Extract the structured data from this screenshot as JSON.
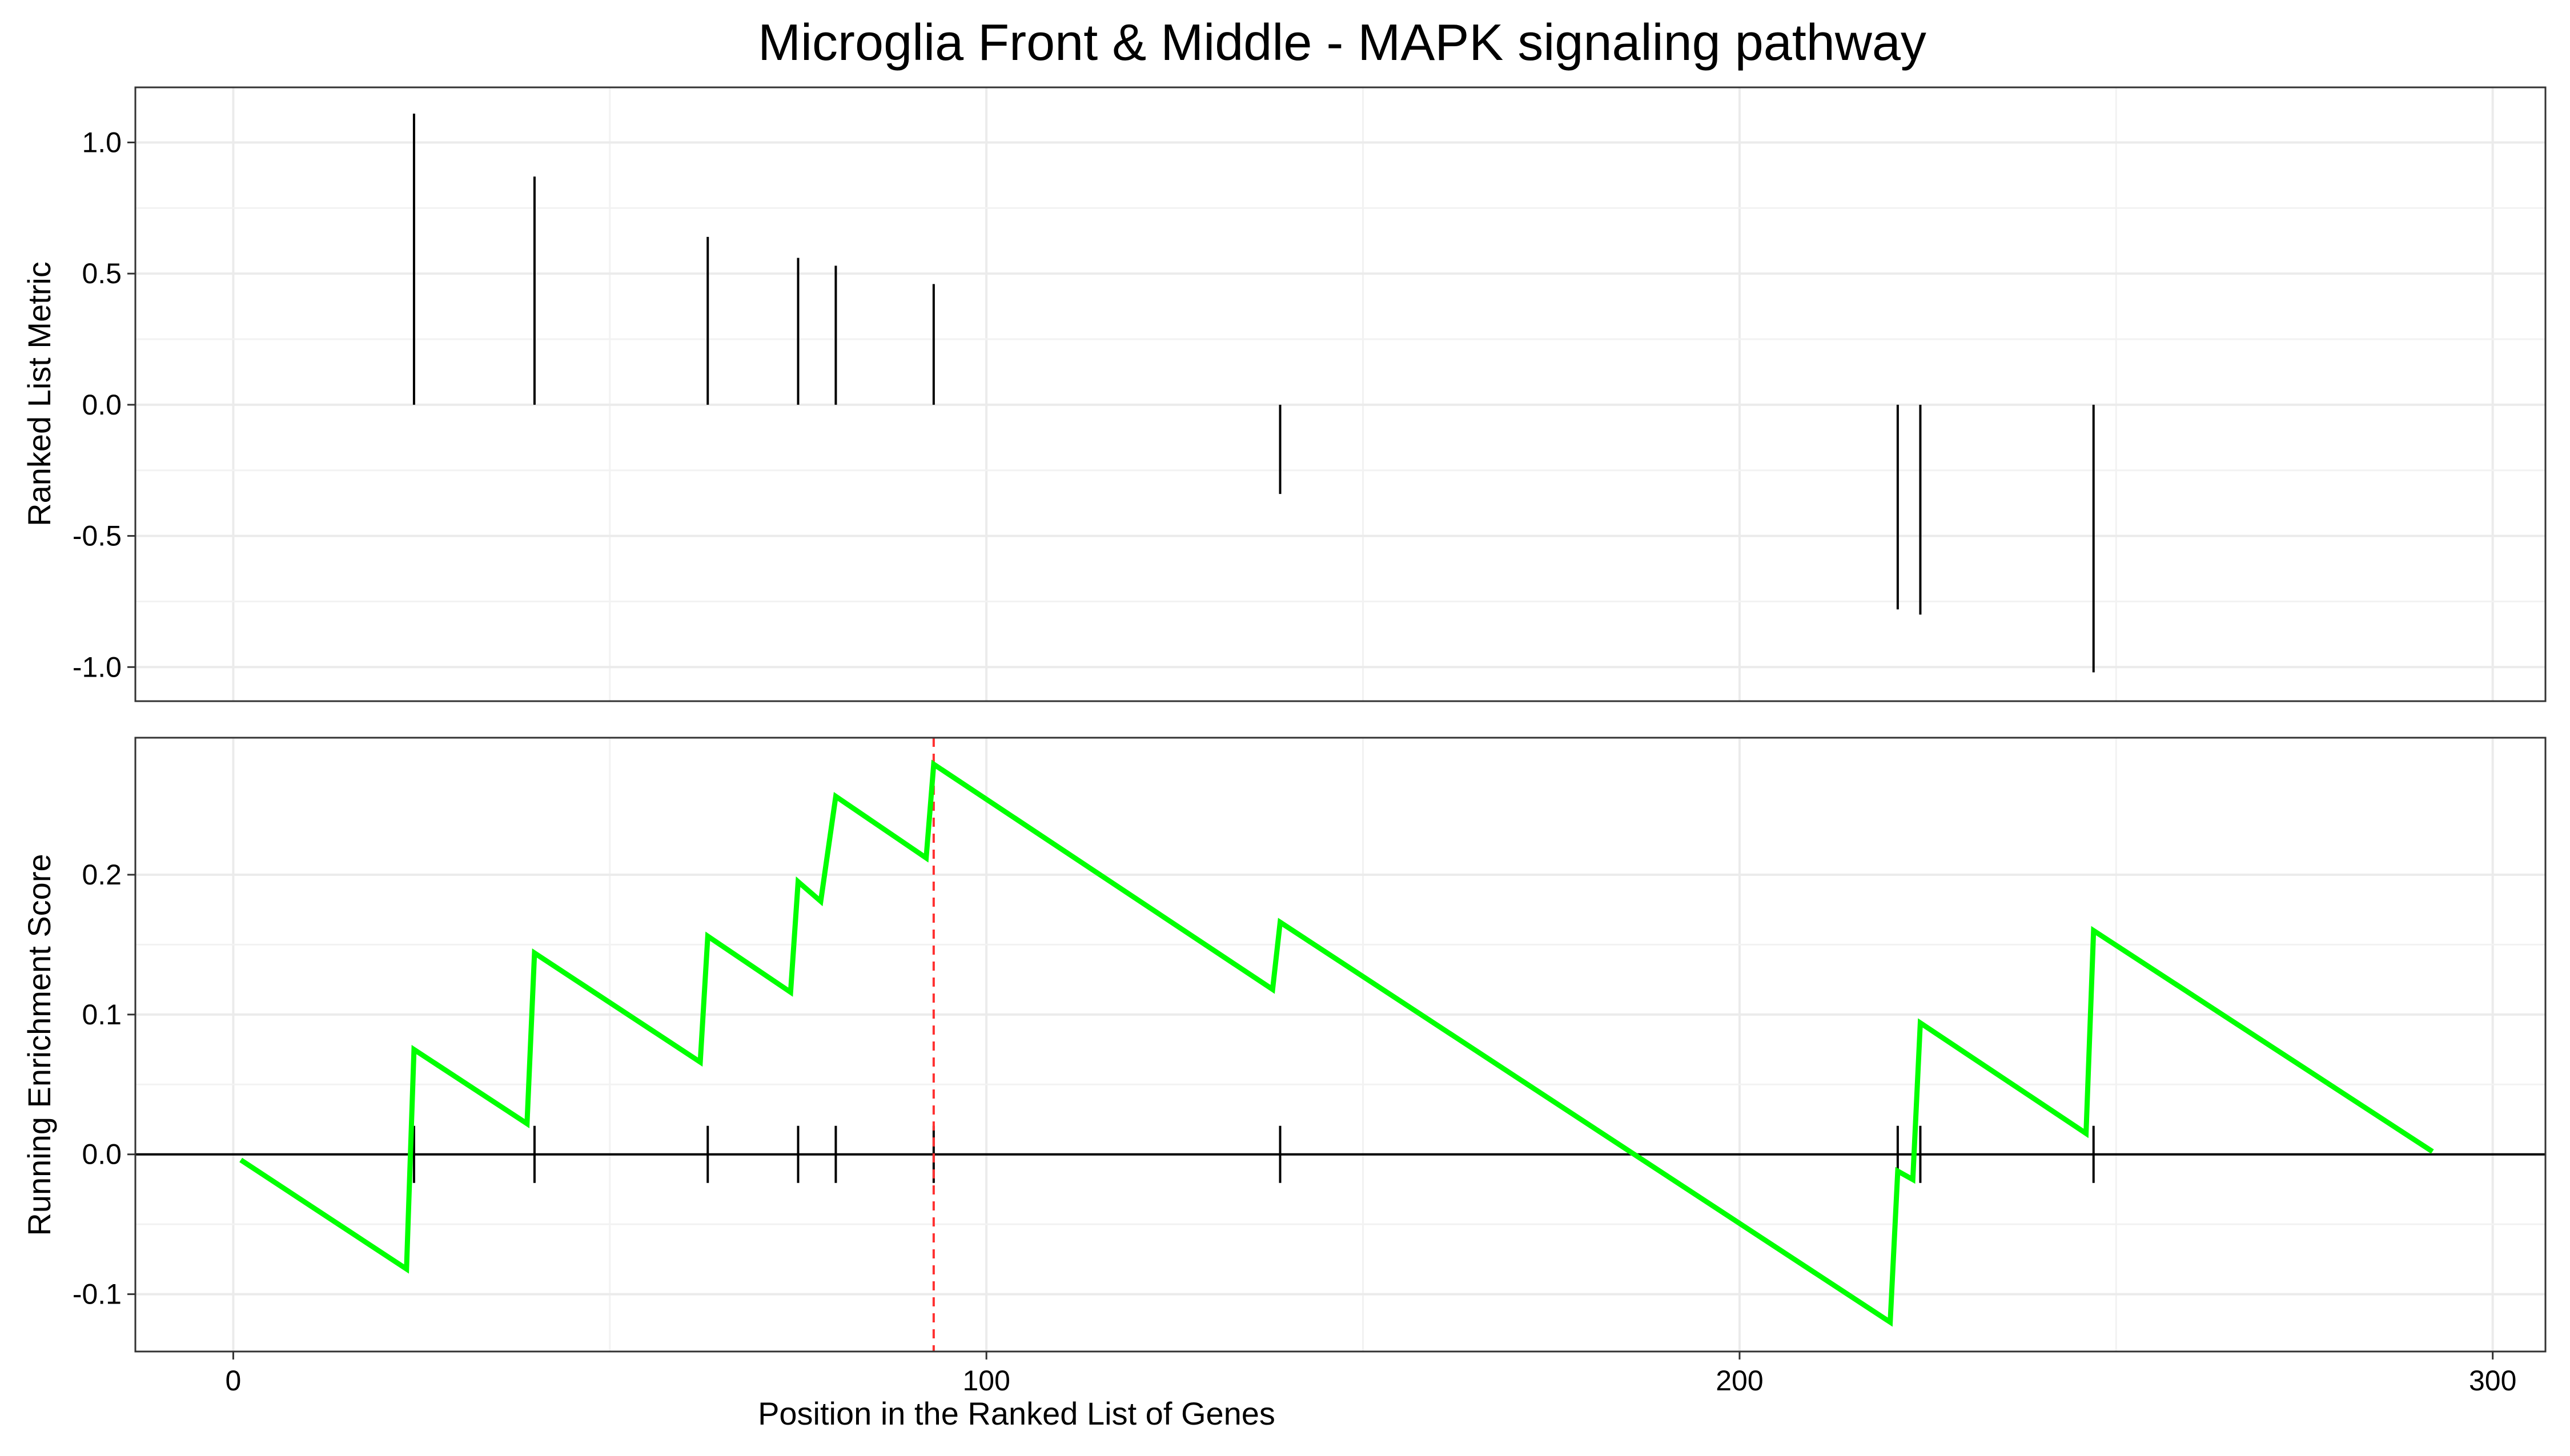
{
  "chart_data": {
    "type": "line",
    "title": "Microglia Front & Middle - MAPK signaling pathway",
    "xlabel": "Position in the Ranked List of Genes",
    "x_ticks": [
      0,
      100,
      200,
      300
    ],
    "xlim": [
      -13,
      307
    ],
    "grid": true,
    "hit_positions": [
      24,
      40,
      63,
      75,
      80,
      93,
      139,
      221,
      224,
      247
    ],
    "leading_edge_position": 93,
    "panels": [
      {
        "name": "ranked-metric",
        "type": "bar",
        "ylabel": "Ranked List Metric",
        "ylim": [
          -1.13,
          1.21
        ],
        "y_ticks": [
          -1.0,
          -0.5,
          0.0,
          0.5,
          1.0
        ],
        "x": [
          24,
          40,
          63,
          75,
          80,
          93,
          139,
          221,
          224,
          247
        ],
        "values": [
          1.11,
          0.87,
          0.64,
          0.56,
          0.53,
          0.46,
          -0.34,
          -0.78,
          -0.8,
          -1.02
        ]
      },
      {
        "name": "running-enrichment",
        "type": "line",
        "ylabel": "Running Enrichment Score",
        "ylim": [
          -0.141,
          0.298
        ],
        "y_ticks": [
          -0.1,
          0.0,
          0.1,
          0.2
        ],
        "series": [
          {
            "color": "#00ff00",
            "x": [
              1,
              23,
              24,
              39,
              40,
              62,
              63,
              74,
              75,
              78,
              80,
              92,
              93,
              138,
              139,
              220,
              221,
              223,
              224,
              246,
              247,
              292
            ],
            "values": [
              -0.004,
              -0.082,
              0.075,
              0.022,
              0.144,
              0.066,
              0.156,
              0.116,
              0.195,
              0.181,
              0.256,
              0.212,
              0.279,
              0.118,
              0.166,
              -0.12,
              -0.012,
              -0.018,
              0.094,
              0.015,
              0.16,
              0.002
            ]
          }
        ]
      }
    ]
  }
}
